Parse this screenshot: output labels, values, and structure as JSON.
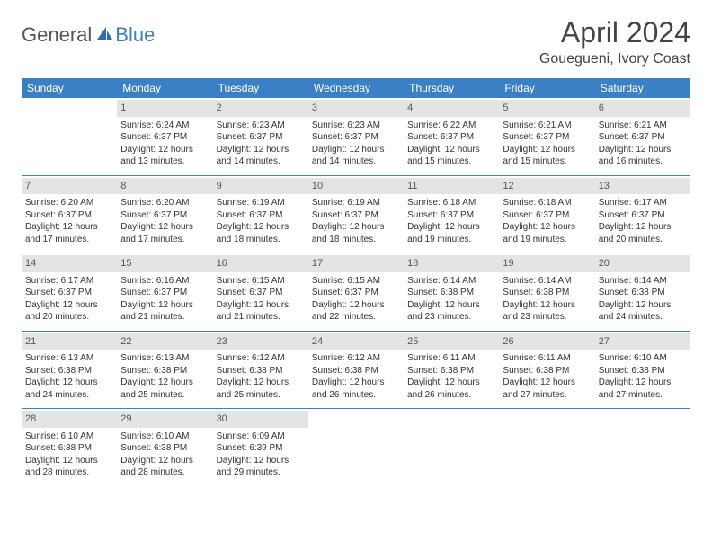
{
  "logo": {
    "general": "General",
    "blue": "Blue"
  },
  "title": "April 2024",
  "location": "Gouegueni, Ivory Coast",
  "colors": {
    "header_bg": "#3b7fc4",
    "header_text": "#ffffff",
    "daynum_bg": "#e4e4e4",
    "daynum_text": "#555555",
    "body_text": "#333333",
    "rule": "#3b7fc4"
  },
  "weekdays": [
    "Sunday",
    "Monday",
    "Tuesday",
    "Wednesday",
    "Thursday",
    "Friday",
    "Saturday"
  ],
  "weeks": [
    [
      null,
      {
        "n": "1",
        "sr": "Sunrise: 6:24 AM",
        "ss": "Sunset: 6:37 PM",
        "d1": "Daylight: 12 hours",
        "d2": "and 13 minutes."
      },
      {
        "n": "2",
        "sr": "Sunrise: 6:23 AM",
        "ss": "Sunset: 6:37 PM",
        "d1": "Daylight: 12 hours",
        "d2": "and 14 minutes."
      },
      {
        "n": "3",
        "sr": "Sunrise: 6:23 AM",
        "ss": "Sunset: 6:37 PM",
        "d1": "Daylight: 12 hours",
        "d2": "and 14 minutes."
      },
      {
        "n": "4",
        "sr": "Sunrise: 6:22 AM",
        "ss": "Sunset: 6:37 PM",
        "d1": "Daylight: 12 hours",
        "d2": "and 15 minutes."
      },
      {
        "n": "5",
        "sr": "Sunrise: 6:21 AM",
        "ss": "Sunset: 6:37 PM",
        "d1": "Daylight: 12 hours",
        "d2": "and 15 minutes."
      },
      {
        "n": "6",
        "sr": "Sunrise: 6:21 AM",
        "ss": "Sunset: 6:37 PM",
        "d1": "Daylight: 12 hours",
        "d2": "and 16 minutes."
      }
    ],
    [
      {
        "n": "7",
        "sr": "Sunrise: 6:20 AM",
        "ss": "Sunset: 6:37 PM",
        "d1": "Daylight: 12 hours",
        "d2": "and 17 minutes."
      },
      {
        "n": "8",
        "sr": "Sunrise: 6:20 AM",
        "ss": "Sunset: 6:37 PM",
        "d1": "Daylight: 12 hours",
        "d2": "and 17 minutes."
      },
      {
        "n": "9",
        "sr": "Sunrise: 6:19 AM",
        "ss": "Sunset: 6:37 PM",
        "d1": "Daylight: 12 hours",
        "d2": "and 18 minutes."
      },
      {
        "n": "10",
        "sr": "Sunrise: 6:19 AM",
        "ss": "Sunset: 6:37 PM",
        "d1": "Daylight: 12 hours",
        "d2": "and 18 minutes."
      },
      {
        "n": "11",
        "sr": "Sunrise: 6:18 AM",
        "ss": "Sunset: 6:37 PM",
        "d1": "Daylight: 12 hours",
        "d2": "and 19 minutes."
      },
      {
        "n": "12",
        "sr": "Sunrise: 6:18 AM",
        "ss": "Sunset: 6:37 PM",
        "d1": "Daylight: 12 hours",
        "d2": "and 19 minutes."
      },
      {
        "n": "13",
        "sr": "Sunrise: 6:17 AM",
        "ss": "Sunset: 6:37 PM",
        "d1": "Daylight: 12 hours",
        "d2": "and 20 minutes."
      }
    ],
    [
      {
        "n": "14",
        "sr": "Sunrise: 6:17 AM",
        "ss": "Sunset: 6:37 PM",
        "d1": "Daylight: 12 hours",
        "d2": "and 20 minutes."
      },
      {
        "n": "15",
        "sr": "Sunrise: 6:16 AM",
        "ss": "Sunset: 6:37 PM",
        "d1": "Daylight: 12 hours",
        "d2": "and 21 minutes."
      },
      {
        "n": "16",
        "sr": "Sunrise: 6:15 AM",
        "ss": "Sunset: 6:37 PM",
        "d1": "Daylight: 12 hours",
        "d2": "and 21 minutes."
      },
      {
        "n": "17",
        "sr": "Sunrise: 6:15 AM",
        "ss": "Sunset: 6:37 PM",
        "d1": "Daylight: 12 hours",
        "d2": "and 22 minutes."
      },
      {
        "n": "18",
        "sr": "Sunrise: 6:14 AM",
        "ss": "Sunset: 6:38 PM",
        "d1": "Daylight: 12 hours",
        "d2": "and 23 minutes."
      },
      {
        "n": "19",
        "sr": "Sunrise: 6:14 AM",
        "ss": "Sunset: 6:38 PM",
        "d1": "Daylight: 12 hours",
        "d2": "and 23 minutes."
      },
      {
        "n": "20",
        "sr": "Sunrise: 6:14 AM",
        "ss": "Sunset: 6:38 PM",
        "d1": "Daylight: 12 hours",
        "d2": "and 24 minutes."
      }
    ],
    [
      {
        "n": "21",
        "sr": "Sunrise: 6:13 AM",
        "ss": "Sunset: 6:38 PM",
        "d1": "Daylight: 12 hours",
        "d2": "and 24 minutes."
      },
      {
        "n": "22",
        "sr": "Sunrise: 6:13 AM",
        "ss": "Sunset: 6:38 PM",
        "d1": "Daylight: 12 hours",
        "d2": "and 25 minutes."
      },
      {
        "n": "23",
        "sr": "Sunrise: 6:12 AM",
        "ss": "Sunset: 6:38 PM",
        "d1": "Daylight: 12 hours",
        "d2": "and 25 minutes."
      },
      {
        "n": "24",
        "sr": "Sunrise: 6:12 AM",
        "ss": "Sunset: 6:38 PM",
        "d1": "Daylight: 12 hours",
        "d2": "and 26 minutes."
      },
      {
        "n": "25",
        "sr": "Sunrise: 6:11 AM",
        "ss": "Sunset: 6:38 PM",
        "d1": "Daylight: 12 hours",
        "d2": "and 26 minutes."
      },
      {
        "n": "26",
        "sr": "Sunrise: 6:11 AM",
        "ss": "Sunset: 6:38 PM",
        "d1": "Daylight: 12 hours",
        "d2": "and 27 minutes."
      },
      {
        "n": "27",
        "sr": "Sunrise: 6:10 AM",
        "ss": "Sunset: 6:38 PM",
        "d1": "Daylight: 12 hours",
        "d2": "and 27 minutes."
      }
    ],
    [
      {
        "n": "28",
        "sr": "Sunrise: 6:10 AM",
        "ss": "Sunset: 6:38 PM",
        "d1": "Daylight: 12 hours",
        "d2": "and 28 minutes."
      },
      {
        "n": "29",
        "sr": "Sunrise: 6:10 AM",
        "ss": "Sunset: 6:38 PM",
        "d1": "Daylight: 12 hours",
        "d2": "and 28 minutes."
      },
      {
        "n": "30",
        "sr": "Sunrise: 6:09 AM",
        "ss": "Sunset: 6:39 PM",
        "d1": "Daylight: 12 hours",
        "d2": "and 29 minutes."
      },
      null,
      null,
      null,
      null
    ]
  ]
}
